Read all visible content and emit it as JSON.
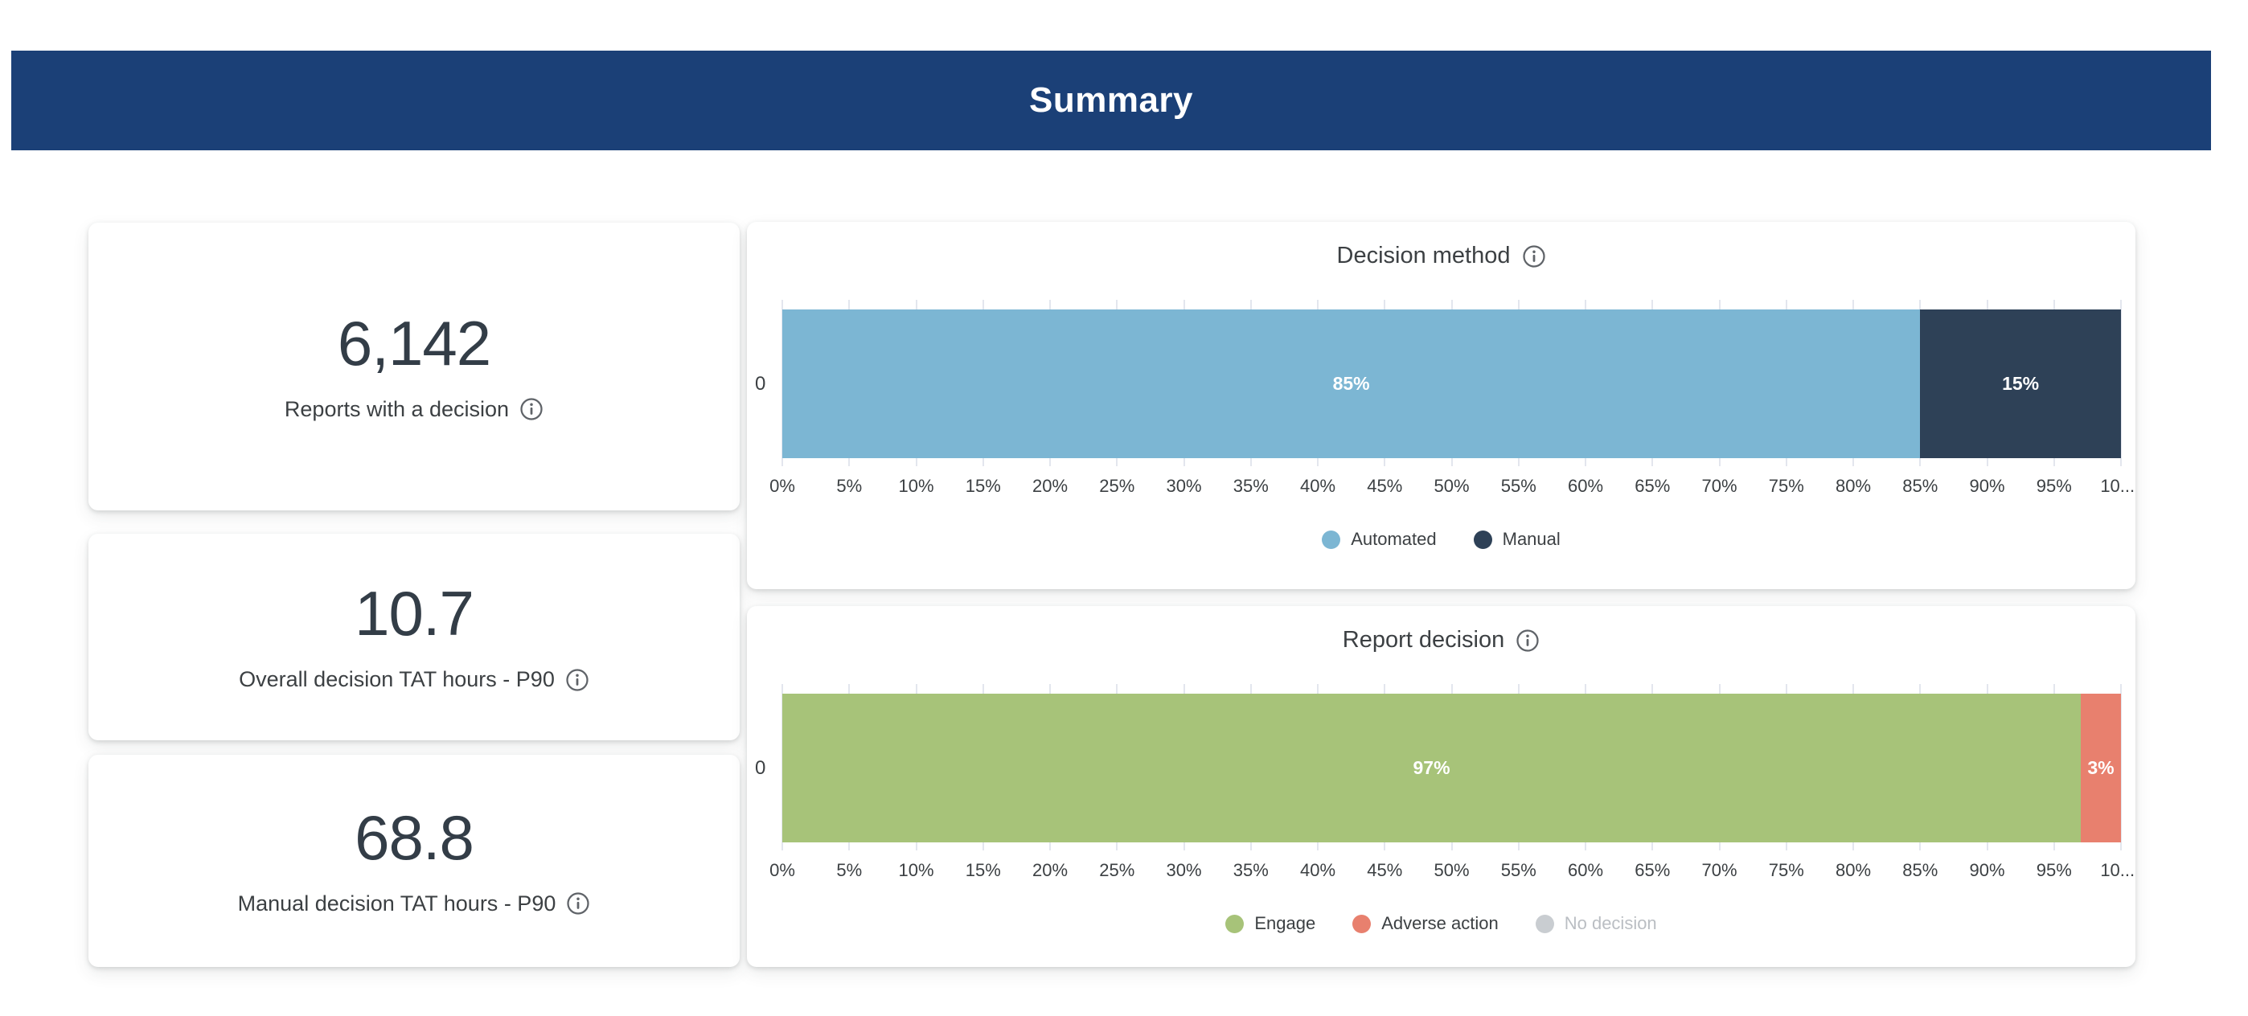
{
  "header": {
    "title": "Summary"
  },
  "kpis": [
    {
      "value": "6,142",
      "label": "Reports with a decision"
    },
    {
      "value": "10.7",
      "label": "Overall decision TAT hours - P90"
    },
    {
      "value": "68.8",
      "label": "Manual decision TAT hours - P90"
    }
  ],
  "charts": [
    {
      "title": "Decision method",
      "y_axis_label": "0",
      "x_ticks": [
        "0%",
        "5%",
        "10%",
        "15%",
        "20%",
        "25%",
        "30%",
        "35%",
        "40%",
        "45%",
        "50%",
        "55%",
        "60%",
        "65%",
        "70%",
        "75%",
        "80%",
        "85%",
        "90%",
        "95%",
        "10..."
      ],
      "segments": [
        {
          "name": "Automated",
          "value": 85,
          "label": "85%",
          "color": "#7cb6d3"
        },
        {
          "name": "Manual",
          "value": 15,
          "label": "15%",
          "color": "#2e4157"
        }
      ],
      "legend": [
        {
          "label": "Automated",
          "color": "#7cb6d3",
          "muted": false
        },
        {
          "label": "Manual",
          "color": "#2e4157",
          "muted": false
        }
      ]
    },
    {
      "title": "Report decision",
      "y_axis_label": "0",
      "x_ticks": [
        "0%",
        "5%",
        "10%",
        "15%",
        "20%",
        "25%",
        "30%",
        "35%",
        "40%",
        "45%",
        "50%",
        "55%",
        "60%",
        "65%",
        "70%",
        "75%",
        "80%",
        "85%",
        "90%",
        "95%",
        "10..."
      ],
      "segments": [
        {
          "name": "Engage",
          "value": 97,
          "label": "97%",
          "color": "#a7c379"
        },
        {
          "name": "Adverse action",
          "value": 3,
          "label": "3%",
          "color": "#e8806e"
        }
      ],
      "legend": [
        {
          "label": "Engage",
          "color": "#a7c379",
          "muted": false
        },
        {
          "label": "Adverse action",
          "color": "#e8806e",
          "muted": false
        },
        {
          "label": "No decision",
          "color": "#c9cdd1",
          "muted": true
        }
      ]
    }
  ],
  "colors": {
    "banner": "#1b4077",
    "automated": "#7cb6d3",
    "manual": "#2e4157",
    "engage": "#a7c379",
    "adverse_action": "#e8806e",
    "no_decision": "#c9cdd1",
    "gridline": "#e3e6ee",
    "kpi_value_text": "#333d47",
    "label_text": "#3c4043"
  },
  "chart_data": [
    {
      "type": "bar",
      "orientation": "horizontal",
      "stacked": true,
      "title": "Decision method",
      "categories": [
        "0"
      ],
      "series": [
        {
          "name": "Automated",
          "values": [
            85
          ]
        },
        {
          "name": "Manual",
          "values": [
            15
          ]
        }
      ],
      "data_labels": [
        "85%",
        "15%"
      ],
      "xlabel": "",
      "ylabel": "",
      "xlim": [
        0,
        100
      ],
      "x_tick_step": 5,
      "x_tick_labels_shown": [
        "0%",
        "5%",
        "10%",
        "15%",
        "20%",
        "25%",
        "30%",
        "35%",
        "40%",
        "45%",
        "50%",
        "55%",
        "60%",
        "65%",
        "70%",
        "75%",
        "80%",
        "85%",
        "90%",
        "95%",
        "10..."
      ],
      "grid": true,
      "legend_position": "bottom"
    },
    {
      "type": "bar",
      "orientation": "horizontal",
      "stacked": true,
      "title": "Report decision",
      "categories": [
        "0"
      ],
      "series": [
        {
          "name": "Engage",
          "values": [
            97
          ]
        },
        {
          "name": "Adverse action",
          "values": [
            3
          ]
        },
        {
          "name": "No decision",
          "values": [
            0
          ]
        }
      ],
      "data_labels": [
        "97%",
        "3%"
      ],
      "xlabel": "",
      "ylabel": "",
      "xlim": [
        0,
        100
      ],
      "x_tick_step": 5,
      "x_tick_labels_shown": [
        "0%",
        "5%",
        "10%",
        "15%",
        "20%",
        "25%",
        "30%",
        "35%",
        "40%",
        "45%",
        "50%",
        "55%",
        "60%",
        "65%",
        "70%",
        "75%",
        "80%",
        "85%",
        "90%",
        "95%",
        "10..."
      ],
      "grid": true,
      "legend_position": "bottom",
      "legend_muted_entries": [
        "No decision"
      ]
    }
  ]
}
